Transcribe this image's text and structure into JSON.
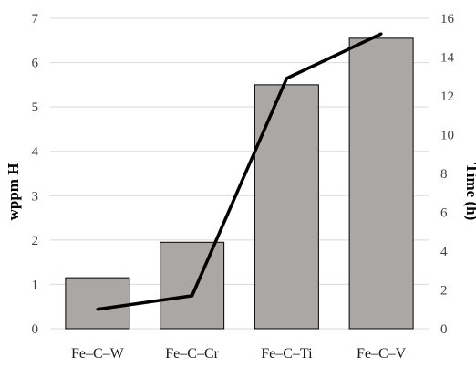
{
  "chart_data": {
    "type": "bar",
    "categories": [
      "Fe–C–W",
      "Fe–C–Cr",
      "Fe–C–Ti",
      "Fe–C–V"
    ],
    "series": [
      {
        "type": "bar",
        "axis": "left",
        "values": [
          1.15,
          1.95,
          5.5,
          6.55
        ]
      },
      {
        "type": "line",
        "axis": "right",
        "values": [
          1.0,
          1.7,
          12.9,
          15.2
        ]
      }
    ],
    "ylabel": "wppm H",
    "y2label": "Time (h)",
    "ylim": [
      0,
      7
    ],
    "y2lim": [
      0,
      16
    ],
    "yticks": [
      "0",
      "1",
      "2",
      "3",
      "4",
      "5",
      "6",
      "7"
    ],
    "y2ticks": [
      "0",
      "2",
      "4",
      "6",
      "8",
      "10",
      "12",
      "14",
      "16"
    ],
    "grid": true,
    "colors": {
      "bar": "#aba7a5",
      "line": "#000000",
      "grid": "#d9d9d9"
    }
  }
}
